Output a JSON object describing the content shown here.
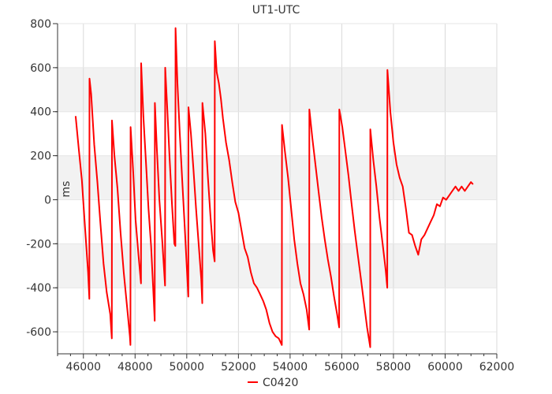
{
  "chart_data": {
    "type": "line",
    "title": "UT1-UTC",
    "xlabel": "",
    "ylabel": "ms",
    "xlim": [
      45000,
      62000
    ],
    "ylim": [
      -700,
      800
    ],
    "x_ticks": [
      46000,
      48000,
      50000,
      52000,
      54000,
      56000,
      58000,
      60000,
      62000
    ],
    "y_ticks": [
      -600,
      -400,
      -200,
      0,
      200,
      400,
      600,
      800
    ],
    "x_tick_labels": [
      "46000",
      "48000",
      "50000",
      "52000",
      "54000",
      "56000",
      "58000",
      "60000",
      "62000"
    ],
    "y_tick_labels": [
      "-600",
      "-400",
      "-200",
      "0",
      "200",
      "400",
      "600",
      "800"
    ],
    "grid": true,
    "band_color": "#f2f2f2",
    "series": [
      {
        "name": "C0420",
        "color": "#ff0000",
        "points": [
          [
            45700,
            380
          ],
          [
            45820,
            230
          ],
          [
            45940,
            90
          ],
          [
            46060,
            -120
          ],
          [
            46180,
            -330
          ],
          [
            46230,
            -450
          ],
          [
            46236,
            550
          ],
          [
            46300,
            480
          ],
          [
            46420,
            250
          ],
          [
            46540,
            80
          ],
          [
            46660,
            -110
          ],
          [
            46780,
            -290
          ],
          [
            46900,
            -420
          ],
          [
            47040,
            -520
          ],
          [
            47100,
            -630
          ],
          [
            47106,
            360
          ],
          [
            47200,
            200
          ],
          [
            47320,
            50
          ],
          [
            47440,
            -150
          ],
          [
            47560,
            -330
          ],
          [
            47700,
            -500
          ],
          [
            47800,
            -620
          ],
          [
            47820,
            -660
          ],
          [
            47826,
            330
          ],
          [
            47930,
            120
          ],
          [
            48020,
            -90
          ],
          [
            48130,
            -250
          ],
          [
            48230,
            -380
          ],
          [
            48236,
            620
          ],
          [
            48320,
            380
          ],
          [
            48420,
            170
          ],
          [
            48520,
            -40
          ],
          [
            48620,
            -210
          ],
          [
            48720,
            -450
          ],
          [
            48760,
            -550
          ],
          [
            48766,
            440
          ],
          [
            48840,
            240
          ],
          [
            48940,
            0
          ],
          [
            49060,
            -200
          ],
          [
            49160,
            -390
          ],
          [
            49166,
            600
          ],
          [
            49250,
            400
          ],
          [
            49330,
            200
          ],
          [
            49430,
            -20
          ],
          [
            49520,
            -200
          ],
          [
            49560,
            -210
          ],
          [
            49566,
            780
          ],
          [
            49640,
            530
          ],
          [
            49730,
            300
          ],
          [
            49820,
            100
          ],
          [
            49920,
            -120
          ],
          [
            49990,
            -280
          ],
          [
            50060,
            -440
          ],
          [
            50066,
            420
          ],
          [
            50160,
            300
          ],
          [
            50260,
            140
          ],
          [
            50360,
            -40
          ],
          [
            50460,
            -200
          ],
          [
            50560,
            -360
          ],
          [
            50600,
            -470
          ],
          [
            50606,
            440
          ],
          [
            50720,
            300
          ],
          [
            50820,
            100
          ],
          [
            50920,
            -80
          ],
          [
            51020,
            -230
          ],
          [
            51080,
            -280
          ],
          [
            51086,
            720
          ],
          [
            51160,
            580
          ],
          [
            51240,
            530
          ],
          [
            51320,
            460
          ],
          [
            51400,
            370
          ],
          [
            51520,
            260
          ],
          [
            51640,
            180
          ],
          [
            51760,
            80
          ],
          [
            51880,
            -10
          ],
          [
            52000,
            -60
          ],
          [
            52120,
            -140
          ],
          [
            52240,
            -220
          ],
          [
            52360,
            -260
          ],
          [
            52480,
            -330
          ],
          [
            52600,
            -380
          ],
          [
            52720,
            -400
          ],
          [
            52840,
            -430
          ],
          [
            52960,
            -460
          ],
          [
            53080,
            -500
          ],
          [
            53200,
            -560
          ],
          [
            53320,
            -600
          ],
          [
            53440,
            -620
          ],
          [
            53560,
            -630
          ],
          [
            53680,
            -660
          ],
          [
            53686,
            340
          ],
          [
            53800,
            220
          ],
          [
            53920,
            100
          ],
          [
            54040,
            -40
          ],
          [
            54160,
            -180
          ],
          [
            54280,
            -290
          ],
          [
            54400,
            -380
          ],
          [
            54520,
            -430
          ],
          [
            54640,
            -500
          ],
          [
            54740,
            -590
          ],
          [
            54746,
            410
          ],
          [
            54860,
            280
          ],
          [
            54980,
            160
          ],
          [
            55100,
            40
          ],
          [
            55220,
            -80
          ],
          [
            55340,
            -180
          ],
          [
            55460,
            -270
          ],
          [
            55580,
            -350
          ],
          [
            55700,
            -440
          ],
          [
            55820,
            -520
          ],
          [
            55900,
            -580
          ],
          [
            55906,
            410
          ],
          [
            56020,
            330
          ],
          [
            56140,
            220
          ],
          [
            56260,
            110
          ],
          [
            56380,
            -20
          ],
          [
            56500,
            -140
          ],
          [
            56620,
            -250
          ],
          [
            56740,
            -360
          ],
          [
            56860,
            -470
          ],
          [
            56980,
            -580
          ],
          [
            57100,
            -670
          ],
          [
            57106,
            320
          ],
          [
            57220,
            180
          ],
          [
            57340,
            60
          ],
          [
            57460,
            -80
          ],
          [
            57580,
            -200
          ],
          [
            57700,
            -320
          ],
          [
            57760,
            -400
          ],
          [
            57766,
            590
          ],
          [
            57880,
            400
          ],
          [
            58000,
            260
          ],
          [
            58120,
            160
          ],
          [
            58240,
            100
          ],
          [
            58360,
            60
          ],
          [
            58480,
            -40
          ],
          [
            58600,
            -150
          ],
          [
            58720,
            -160
          ],
          [
            58840,
            -210
          ],
          [
            58960,
            -250
          ],
          [
            59080,
            -180
          ],
          [
            59200,
            -160
          ],
          [
            59320,
            -130
          ],
          [
            59440,
            -100
          ],
          [
            59560,
            -70
          ],
          [
            59680,
            -20
          ],
          [
            59800,
            -30
          ],
          [
            59920,
            10
          ],
          [
            60040,
            0
          ],
          [
            60160,
            20
          ],
          [
            60280,
            40
          ],
          [
            60400,
            60
          ],
          [
            60520,
            40
          ],
          [
            60640,
            60
          ],
          [
            60760,
            40
          ],
          [
            60880,
            60
          ],
          [
            61000,
            80
          ],
          [
            61080,
            70
          ]
        ]
      }
    ],
    "legend": {
      "position": "bottom-center"
    }
  }
}
